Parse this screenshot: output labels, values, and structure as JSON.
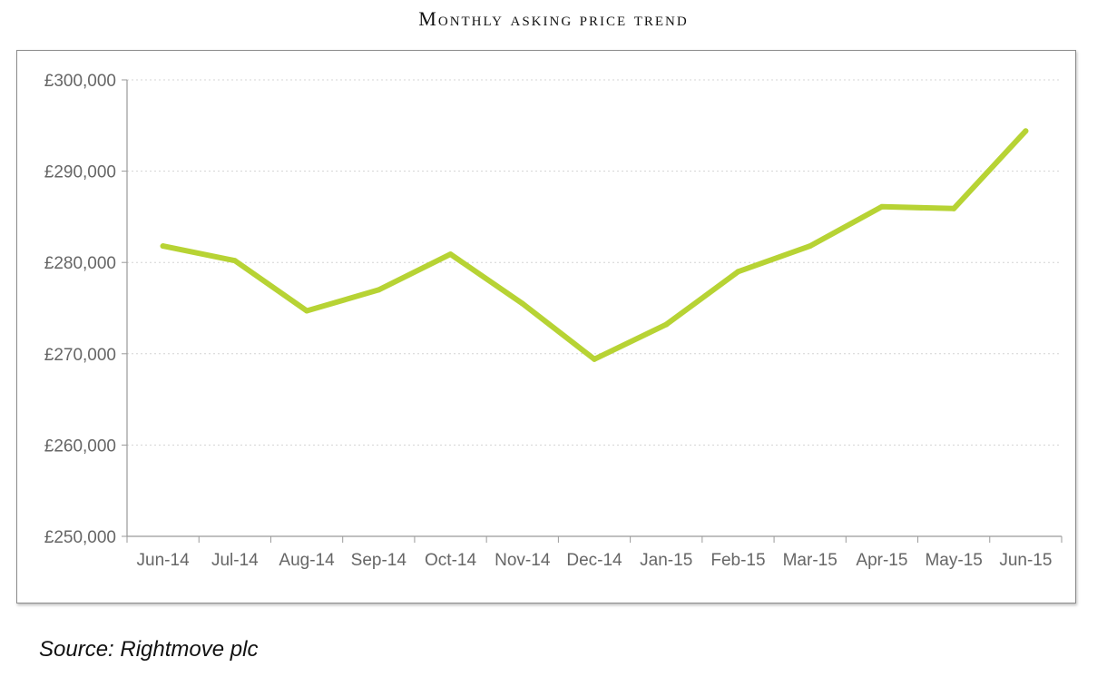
{
  "title": "Monthly asking price trend",
  "source": "Source: Rightmove plc",
  "chart_data": {
    "type": "line",
    "title": "Monthly asking price trend",
    "xlabel": "",
    "ylabel": "",
    "categories": [
      "Jun-14",
      "Jul-14",
      "Aug-14",
      "Sep-14",
      "Oct-14",
      "Nov-14",
      "Dec-14",
      "Jan-15",
      "Feb-15",
      "Mar-15",
      "Apr-15",
      "May-15",
      "Jun-15"
    ],
    "series": [
      {
        "values": [
          281800,
          280200,
          274700,
          277000,
          280900,
          275500,
          269400,
          273200,
          279000,
          281800,
          286100,
          285900,
          294400
        ]
      }
    ],
    "ylim": [
      250000,
      300000
    ],
    "yticks": [
      250000,
      260000,
      270000,
      280000,
      290000,
      300000
    ],
    "ytick_labels": [
      "£250,000",
      "£260,000",
      "£270,000",
      "£280,000",
      "£290,000",
      "£300,000"
    ],
    "grid": "horizontal dotted",
    "legend": "none",
    "line_color": "#b7d334"
  }
}
